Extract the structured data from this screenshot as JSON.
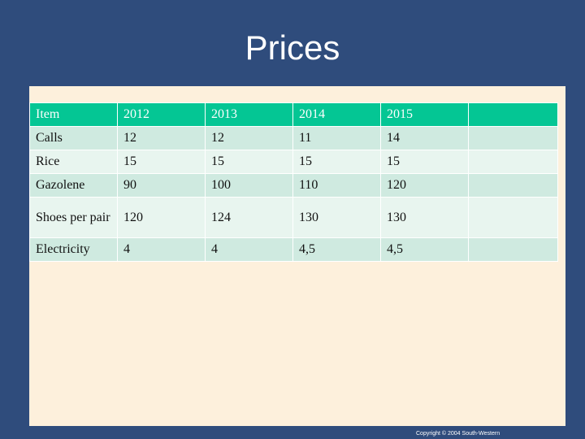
{
  "slide": {
    "title": "Prices",
    "copyright": "Copyright © 2004 South-Western"
  },
  "table": {
    "headers": [
      "Item",
      "2012",
      "2013",
      "2014",
      "2015",
      ""
    ],
    "rows": [
      [
        "Calls",
        "12",
        "12",
        "11",
        "14",
        ""
      ],
      [
        "Rice",
        "15",
        "15",
        "15",
        "15",
        ""
      ],
      [
        "Gazolene",
        "90",
        "100",
        "110",
        "120",
        ""
      ],
      [
        "Shoes per pair",
        "120",
        "124",
        "130",
        "130",
        ""
      ],
      [
        "Electricity",
        "4",
        "4",
        "4,5",
        "4,5",
        ""
      ]
    ]
  },
  "colors": {
    "background": "#2f4c7c",
    "panel": "#fdf0dc",
    "header": "#04c694",
    "row": "#cfeae0",
    "row_alt": "#e8f5ef"
  }
}
